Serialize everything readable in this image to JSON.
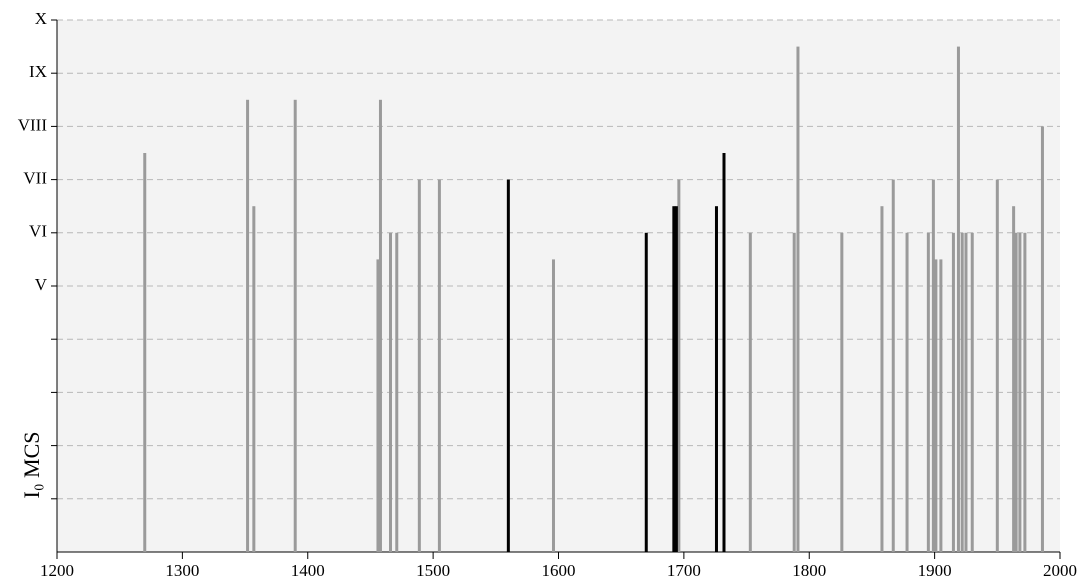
{
  "chart_data": {
    "type": "bar",
    "y_label": "I₀ MCS",
    "xlim": [
      1200,
      2000
    ],
    "xticks": [
      1200,
      1300,
      1400,
      1500,
      1600,
      1700,
      1800,
      1900,
      2000
    ],
    "ylim": [
      0,
      10
    ],
    "yticks": [
      {
        "value": 1,
        "label": null
      },
      {
        "value": 2,
        "label": null
      },
      {
        "value": 3,
        "label": null
      },
      {
        "value": 4,
        "label": null
      },
      {
        "value": 5,
        "label": "V"
      },
      {
        "value": 6,
        "label": "VI"
      },
      {
        "value": 7,
        "label": "VII"
      },
      {
        "value": 8,
        "label": "VIII"
      },
      {
        "value": 9,
        "label": "IX"
      },
      {
        "value": 10,
        "label": "X"
      }
    ],
    "grid": true,
    "series": [
      {
        "color": "#9a9a9a",
        "x": [
          1270,
          1352,
          1357,
          1390,
          1456,
          1458,
          1466,
          1471,
          1489,
          1505,
          1596,
          1696,
          1753,
          1788,
          1791,
          1826,
          1858,
          1867,
          1878,
          1895,
          1899,
          1901,
          1905,
          1915,
          1919,
          1922,
          1925,
          1930,
          1950,
          1963,
          1965,
          1968,
          1972,
          1986
        ],
        "values": [
          7.5,
          8.5,
          6.5,
          8.5,
          5.5,
          8.5,
          6,
          6,
          7,
          7,
          5.5,
          7,
          6,
          6,
          9.5,
          6,
          6.5,
          7,
          6,
          6,
          7,
          5.5,
          5.5,
          6,
          9.5,
          6,
          6,
          6,
          7,
          6.5,
          6,
          6,
          6,
          8
        ]
      },
      {
        "color": "#000000",
        "x": [
          1560,
          1670,
          1692,
          1694,
          1726,
          1732
        ],
        "values": [
          7,
          6,
          6.5,
          6.5,
          6.5,
          7.5
        ]
      }
    ]
  }
}
